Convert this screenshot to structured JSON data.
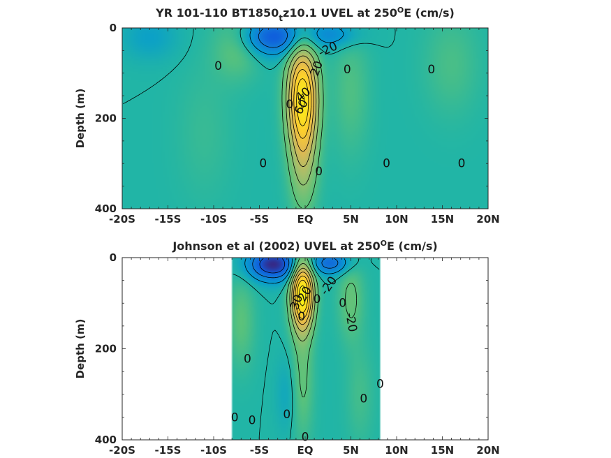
{
  "colors": {
    "background": "#21b5a6",
    "negative_strong": "#3a7ae0",
    "positive_strong": "#f5c83a",
    "contour": "#000000",
    "axis": "#262626"
  },
  "chart_data": [
    {
      "type": "heatmap",
      "title_parts": [
        "YR 101-110 BT1850",
        "t",
        "z10.1 UVEL at 250",
        "O",
        "E (cm/s)"
      ],
      "ylabel": "Depth (m)",
      "xlim": [
        -20,
        20
      ],
      "ylim": [
        400,
        0
      ],
      "y_reversed": true,
      "xticks": [
        -20,
        -15,
        -10,
        -5,
        0,
        5,
        10,
        15,
        20
      ],
      "xticklabels": [
        "-20S",
        "-15S",
        "-10S",
        "-5S",
        "EQ",
        "5N",
        "10N",
        "15N",
        "20N"
      ],
      "yticks": [
        0,
        200,
        400
      ],
      "yticklabels": [
        "0",
        "200",
        "400"
      ],
      "data_xrange": [
        -20,
        20
      ],
      "contour_interval": 10,
      "features": [
        {
          "lat": -0.3,
          "depth": 150,
          "half_width_deg": 1.6,
          "half_depth_m": 110,
          "value": 65
        },
        {
          "lat": -0.2,
          "depth": 290,
          "half_width_deg": 1.5,
          "half_depth_m": 120,
          "value": 22
        },
        {
          "lat": -3.5,
          "depth": 20,
          "half_width_deg": 3.5,
          "half_depth_m": 40,
          "value": -30
        },
        {
          "lat": 3,
          "depth": 15,
          "half_width_deg": 3,
          "half_depth_m": 30,
          "value": -15
        },
        {
          "lat": -7.5,
          "depth": 40,
          "half_width_deg": 2.5,
          "half_depth_m": 70,
          "value": 12
        },
        {
          "lat": 5,
          "depth": 140,
          "half_width_deg": 2,
          "half_depth_m": 140,
          "value": 8
        },
        {
          "lat": -17,
          "depth": 20,
          "half_width_deg": 3,
          "half_depth_m": 50,
          "value": -8
        },
        {
          "lat": 16,
          "depth": 80,
          "half_width_deg": 3,
          "half_depth_m": 110,
          "value": 7
        },
        {
          "lat": -11,
          "depth": 230,
          "half_width_deg": 3,
          "half_depth_m": 150,
          "value": 4
        }
      ],
      "contour_labels": [
        {
          "lat": -9.5,
          "depth": 85,
          "text": "0",
          "angle": 0
        },
        {
          "lat": 2.5,
          "depth": 48,
          "text": "-20",
          "angle": -25
        },
        {
          "lat": 1.3,
          "depth": 90,
          "text": "20",
          "angle": -70
        },
        {
          "lat": 4.6,
          "depth": 93,
          "text": "0",
          "angle": 0
        },
        {
          "lat": 13.8,
          "depth": 93,
          "text": "0",
          "angle": 0
        },
        {
          "lat": -0.2,
          "depth": 148,
          "text": "40",
          "angle": -40
        },
        {
          "lat": -1.7,
          "depth": 170,
          "text": "0",
          "angle": 0
        },
        {
          "lat": -0.4,
          "depth": 175,
          "text": "60",
          "angle": -60
        },
        {
          "lat": -4.6,
          "depth": 300,
          "text": "0",
          "angle": 0
        },
        {
          "lat": 1.5,
          "depth": 318,
          "text": "0",
          "angle": 0
        },
        {
          "lat": 8.9,
          "depth": 300,
          "text": "0",
          "angle": 0
        },
        {
          "lat": 17.1,
          "depth": 300,
          "text": "0",
          "angle": 0
        }
      ]
    },
    {
      "type": "heatmap",
      "title_parts": [
        "Johnson et al (2002) UVEL at 250",
        "O",
        "E (cm/s)"
      ],
      "ylabel": "Depth (m)",
      "xlim": [
        -20,
        20
      ],
      "ylim": [
        400,
        0
      ],
      "y_reversed": true,
      "xticks": [
        -20,
        -15,
        -10,
        -5,
        0,
        5,
        10,
        15,
        20
      ],
      "xticklabels": [
        "-20S",
        "-15S",
        "-10S",
        "-5S",
        "EQ",
        "5N",
        "10N",
        "15N",
        "20N"
      ],
      "yticks": [
        0,
        200,
        400
      ],
      "yticklabels": [
        "0",
        "200",
        "400"
      ],
      "data_xrange": [
        -8,
        8.2
      ],
      "contour_interval": 10,
      "features": [
        {
          "lat": -0.3,
          "depth": 80,
          "half_width_deg": 1.2,
          "half_depth_m": 75,
          "value": 75
        },
        {
          "lat": -0.3,
          "depth": 260,
          "half_width_deg": 1.2,
          "half_depth_m": 140,
          "value": 12
        },
        {
          "lat": -3.5,
          "depth": 15,
          "half_width_deg": 2.8,
          "half_depth_m": 35,
          "value": -40
        },
        {
          "lat": 2.8,
          "depth": 12,
          "half_width_deg": 2.2,
          "half_depth_m": 25,
          "value": -25
        },
        {
          "lat": -7,
          "depth": 140,
          "half_width_deg": 1.5,
          "half_depth_m": 100,
          "value": 10
        },
        {
          "lat": 5,
          "depth": 90,
          "half_width_deg": 1.4,
          "half_depth_m": 90,
          "value": 12
        },
        {
          "lat": 6,
          "depth": 300,
          "half_width_deg": 1.5,
          "half_depth_m": 110,
          "value": 6
        },
        {
          "lat": -2,
          "depth": 300,
          "half_width_deg": 1.2,
          "half_depth_m": 80,
          "value": -6
        }
      ],
      "contour_labels": [
        {
          "lat": 2.6,
          "depth": 62,
          "text": "-20",
          "angle": -55
        },
        {
          "lat": -0.9,
          "depth": 98,
          "text": "30",
          "angle": -70
        },
        {
          "lat": 0,
          "depth": 80,
          "text": "20",
          "angle": -60
        },
        {
          "lat": -0.4,
          "depth": 130,
          "text": "0",
          "angle": 0
        },
        {
          "lat": 1.3,
          "depth": 92,
          "text": "0",
          "angle": 0
        },
        {
          "lat": 4.1,
          "depth": 100,
          "text": "0",
          "angle": 0
        },
        {
          "lat": 5,
          "depth": 142,
          "text": "-20",
          "angle": 80
        },
        {
          "lat": -6.3,
          "depth": 223,
          "text": "0",
          "angle": 0
        },
        {
          "lat": 8.2,
          "depth": 278,
          "text": "0",
          "angle": 0
        },
        {
          "lat": 6.4,
          "depth": 310,
          "text": "0",
          "angle": 0
        },
        {
          "lat": -7.7,
          "depth": 352,
          "text": "0",
          "angle": 0
        },
        {
          "lat": -5.8,
          "depth": 358,
          "text": "0",
          "angle": 0
        },
        {
          "lat": -2,
          "depth": 345,
          "text": "0",
          "angle": 0
        },
        {
          "lat": 0,
          "depth": 395,
          "text": "0",
          "angle": 0
        }
      ]
    }
  ]
}
